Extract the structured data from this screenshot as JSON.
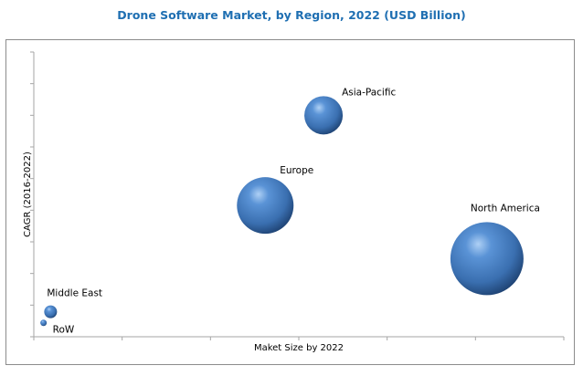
{
  "chart_data": {
    "type": "bubble",
    "title": "Drone Software Market, by Region, 2022 (USD Billion)",
    "xlabel": "Maket Size by 2022",
    "ylabel": "CAGR (2016-2022)",
    "xlim": [
      0,
      6
    ],
    "ylim": [
      0,
      9
    ],
    "x_ticks": 6,
    "y_ticks": 9,
    "tick_labels_shown": false,
    "grid": false,
    "legend": "none",
    "bubble_color": "#3a72b6",
    "series": [
      {
        "name": "Asia-Pacific",
        "x": 3.28,
        "y": 7.0,
        "size": 21
      },
      {
        "name": "Europe",
        "x": 2.62,
        "y": 4.15,
        "size": 31
      },
      {
        "name": "North America",
        "x": 5.13,
        "y": 2.47,
        "size": 40
      },
      {
        "name": "Middle East",
        "x": 0.19,
        "y": 0.79,
        "size": 7
      },
      {
        "name": "RoW",
        "x": 0.11,
        "y": 0.44,
        "size": 3.5
      }
    ]
  }
}
